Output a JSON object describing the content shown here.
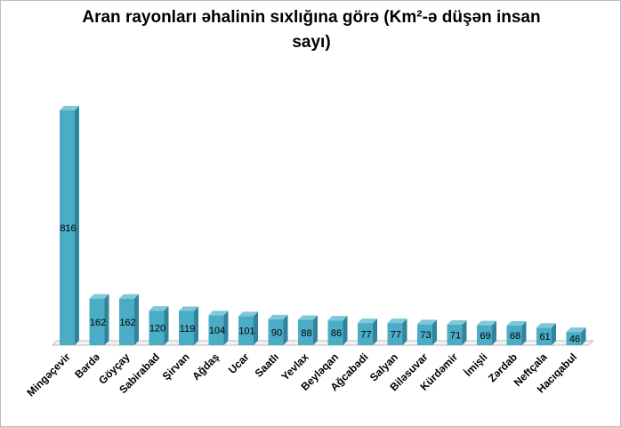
{
  "chart_data": {
    "type": "bar",
    "title": "Aran rayonları əhalinin sıxlığına görə (Km²-ə düşən insan sayı)",
    "categories": [
      "Mingəçevir",
      "Bərdə",
      "Göyçay",
      "Sabirabad",
      "Şirvan",
      "Ağdaş",
      "Ucar",
      "Saatlı",
      "Yevlax",
      "Beyləqan",
      "Ağcabədi",
      "Salyan",
      "Biləsuvar",
      "Kürdəmir",
      "İmişli",
      "Zərdab",
      "Neftçala",
      "Hacıqabul"
    ],
    "values": [
      816,
      162,
      162,
      120,
      119,
      104,
      101,
      90,
      88,
      86,
      77,
      77,
      73,
      71,
      69,
      68,
      61,
      46
    ],
    "ylim": [
      0,
      816
    ],
    "grid": false,
    "legend": "none",
    "bar_color": "#4bacc6",
    "bar_side_color": "#31849b",
    "bar_top_color": "#7fc8da"
  }
}
